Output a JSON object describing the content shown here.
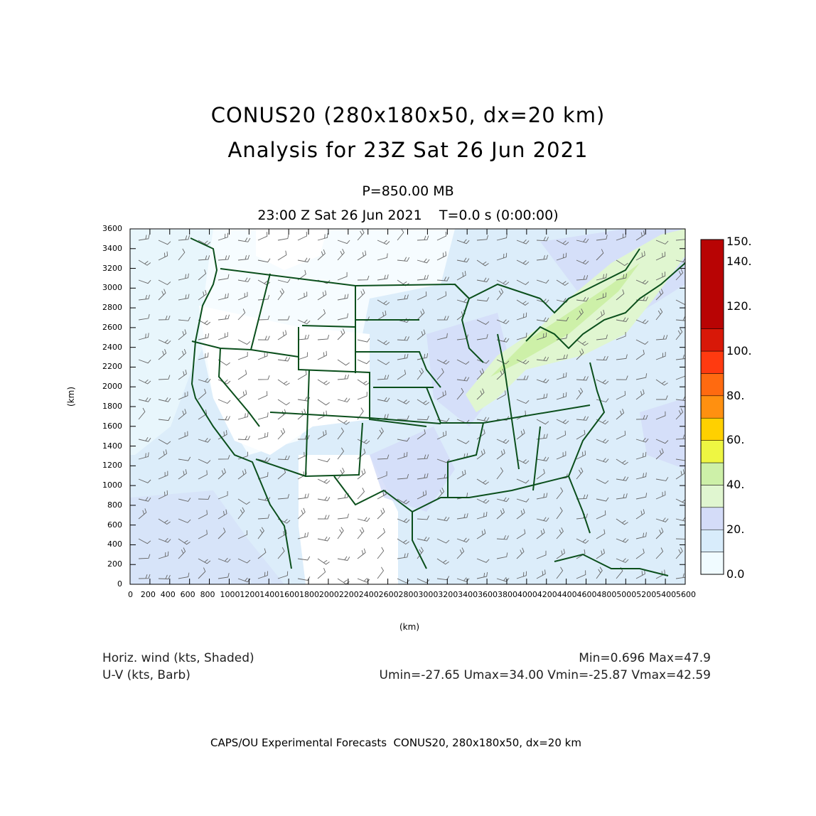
{
  "header": {
    "title_line1": "CONUS20 (280x180x50, dx=20 km)",
    "title_line2": "Analysis for 23Z Sat 26 Jun 2021",
    "level": "P=850.00 MB",
    "valid_time": "23:00 Z Sat 26 Jun 2021    T=0.0 s (0:00:00)"
  },
  "axes": {
    "x_label": "(km)",
    "y_label": "(km)",
    "x_range": [
      0,
      5600
    ],
    "y_range": [
      0,
      3600
    ],
    "x_ticks": [
      "0",
      "200",
      "400",
      "600",
      "800",
      "1000",
      "1200",
      "1400",
      "1600",
      "1800",
      "2000",
      "2200",
      "2400",
      "2600",
      "2800",
      "3000",
      "3200",
      "3400",
      "3600",
      "3800",
      "4000",
      "4200",
      "4400",
      "4600",
      "4800",
      "5000",
      "5200",
      "5400",
      "5600"
    ],
    "y_ticks": [
      "0",
      "200",
      "400",
      "600",
      "800",
      "1000",
      "1200",
      "1400",
      "1600",
      "1800",
      "2000",
      "2200",
      "2400",
      "2600",
      "2800",
      "3000",
      "3200",
      "3400",
      "3600"
    ]
  },
  "colorbar": {
    "labels": [
      "150.",
      "140.",
      "120.",
      "100.",
      "80.",
      "60.",
      "40.",
      "20.",
      "0.0"
    ],
    "colors": [
      "#f0fbff",
      "#d8ecfb",
      "#d4dcf8",
      "#e0f6d0",
      "#cdf0a8",
      "#eef642",
      "#ffd000",
      "#ff9010",
      "#ff6a10",
      "#ff3a10",
      "#d81808",
      "#b80404"
    ]
  },
  "stats": {
    "field1": "Horiz. wind (kts, Shaded)",
    "field2": "U-V (kts, Barb)",
    "minmax": "Min=0.696 Max=47.9",
    "uv_range": "Umin=-27.65 Umax=34.00 Vmin=-25.87 Vmax=42.59"
  },
  "footer": "CAPS/OU Experimental Forecasts  CONUS20, 280x180x50, dx=20 km",
  "map": {
    "field_colors": {
      "calm": "#f0fbff",
      "light": "#dcedfa",
      "moderate": "#d4dcf8",
      "strong": "#e0f6d0",
      "stronger": "#cdf0a8"
    },
    "boundary_color": "#0b4f1c"
  }
}
